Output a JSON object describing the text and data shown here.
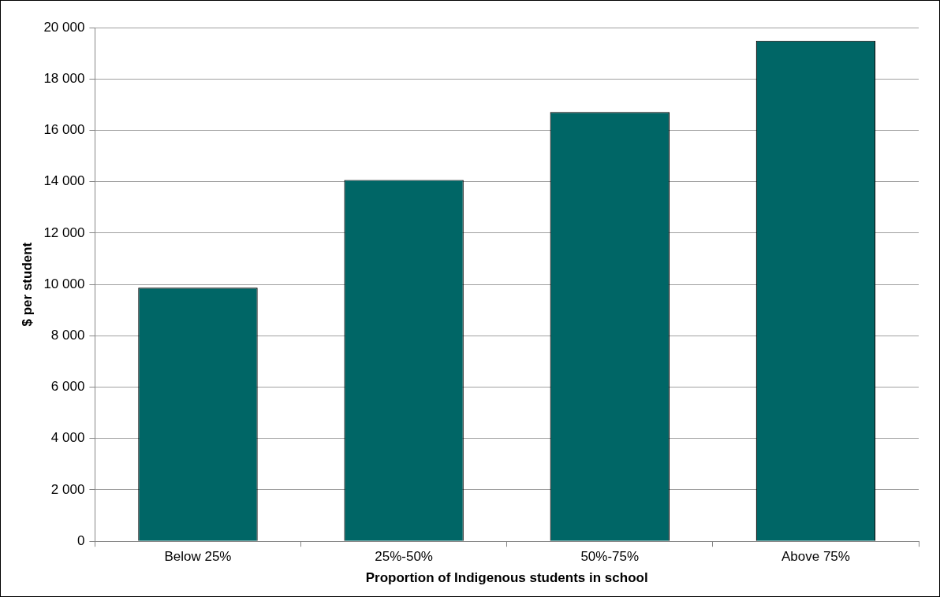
{
  "chart_data": {
    "type": "bar",
    "xlabel": "Proportion of Indigenous students in school",
    "ylabel": "$ per student",
    "categories": [
      "Below 25%",
      "25%-50%",
      "50%-75%",
      "Above 75%"
    ],
    "series": [
      {
        "color": "#006666",
        "values": [
          9870,
          14070,
          16710,
          19490
        ]
      }
    ],
    "ylim": [
      0,
      20000
    ],
    "yticks": [
      {
        "value": 0,
        "label": "0"
      },
      {
        "value": 2000,
        "label": "2 000"
      },
      {
        "value": 4000,
        "label": "4 000"
      },
      {
        "value": 6000,
        "label": "6 000"
      },
      {
        "value": 8000,
        "label": "8 000"
      },
      {
        "value": 10000,
        "label": "10 000"
      },
      {
        "value": 12000,
        "label": "12 000"
      },
      {
        "value": 14000,
        "label": "14 000"
      },
      {
        "value": 16000,
        "label": "16 000"
      },
      {
        "value": 18000,
        "label": "18 000"
      },
      {
        "value": 20000,
        "label": "20 000"
      }
    ],
    "grid": "y",
    "legend": false
  }
}
